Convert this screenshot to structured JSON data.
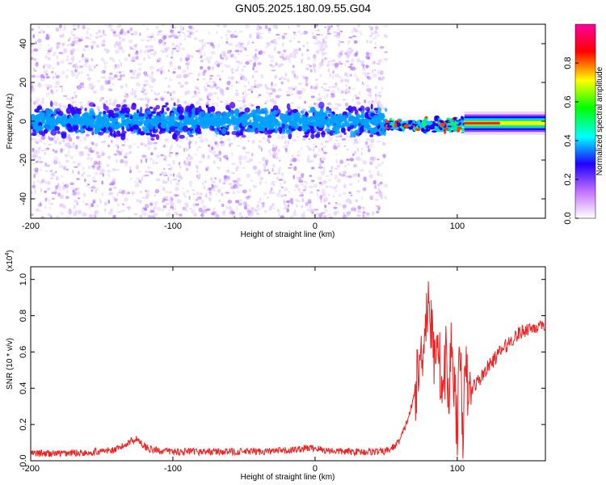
{
  "title": "GN05.2025.180.09.55.G04",
  "chart_data": [
    {
      "type": "heatmap",
      "xlabel": "Height of straight line (km)",
      "ylabel": "Frequency (Hz)",
      "xlim": [
        -200,
        162
      ],
      "ylim": [
        -50,
        50
      ],
      "x_ticks": [
        -200,
        -100,
        0,
        100
      ],
      "y_ticks": [
        -40,
        -20,
        0,
        20,
        40
      ],
      "colorbar": {
        "label": "Normalized spectral amplitude",
        "range": [
          0,
          1
        ],
        "ticks": [
          0.0,
          0.2,
          0.4,
          0.6,
          0.8
        ],
        "tick_labels": [
          "0.0",
          "0.2",
          "0.4",
          "0.6",
          "0.8"
        ],
        "colors": [
          "#ffffff",
          "#c070ff",
          "#2000ff",
          "#00ffff",
          "#00ff00",
          "#ffff00",
          "#ff0000",
          "#ff00a0"
        ]
      },
      "features": [
        {
          "x_range": [
            -200,
            50
          ],
          "freq_center": 0,
          "band_halfwidth": 10,
          "description": "scattered noise band"
        },
        {
          "x_range": [
            50,
            105
          ],
          "freq_center": -2,
          "band_halfwidth": 3,
          "description": "emerging carrier signal"
        },
        {
          "x_range": [
            105,
            162
          ],
          "freq_center": -1,
          "band_halfwidth": 2,
          "description": "strong carrier signal"
        }
      ]
    },
    {
      "type": "line",
      "xlabel": "Height of straight line (km)",
      "ylabel": "SNR (10 * v/v)",
      "y_multiplier": "(x10",
      "y_multiplier_exp": "4",
      "xlim": [
        -200,
        162
      ],
      "ylim": [
        0,
        1.07
      ],
      "x_ticks": [
        -200,
        -100,
        0,
        100
      ],
      "y_ticks": [
        0.0,
        0.2,
        0.4,
        0.6,
        0.8,
        1.0
      ],
      "y_tick_labels": [
        "0.0",
        "0.2",
        "0.4",
        "0.6",
        "0.8",
        "1.0"
      ],
      "series": [
        {
          "color": "#ee2222",
          "x": [
            -200,
            -180,
            -160,
            -140,
            -135,
            -130,
            -125,
            -120,
            -115,
            -100,
            -80,
            -60,
            -40,
            -20,
            -5,
            0,
            5,
            20,
            40,
            48,
            52,
            56,
            60,
            64,
            68,
            72,
            76,
            78,
            80,
            82,
            84,
            86,
            88,
            90,
            92,
            94,
            96,
            98,
            100,
            102,
            104,
            106,
            108,
            112,
            116,
            120,
            125,
            130,
            135,
            140,
            145,
            150,
            155,
            160,
            162
          ],
          "y": [
            0.04,
            0.04,
            0.045,
            0.06,
            0.08,
            0.11,
            0.12,
            0.08,
            0.06,
            0.05,
            0.05,
            0.05,
            0.05,
            0.055,
            0.07,
            0.07,
            0.06,
            0.05,
            0.05,
            0.05,
            0.06,
            0.08,
            0.12,
            0.2,
            0.3,
            0.45,
            0.65,
            0.8,
            0.9,
            0.7,
            0.55,
            0.75,
            0.5,
            0.35,
            0.6,
            0.3,
            0.7,
            0.4,
            0.2,
            0.6,
            0.18,
            0.5,
            0.35,
            0.42,
            0.45,
            0.5,
            0.55,
            0.6,
            0.64,
            0.68,
            0.71,
            0.73,
            0.74,
            0.73,
            0.72
          ]
        }
      ]
    }
  ]
}
